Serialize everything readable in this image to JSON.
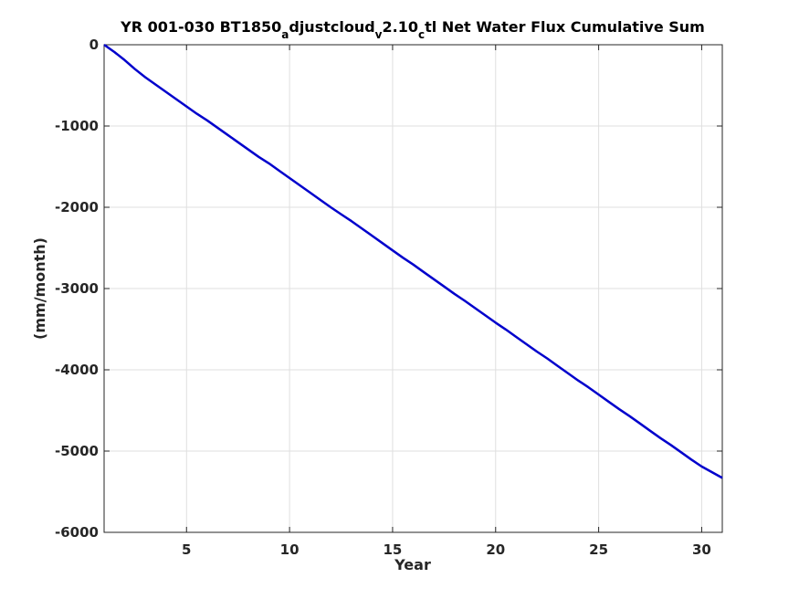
{
  "chart_data": {
    "type": "line",
    "title": {
      "parts": [
        {
          "text": "YR 001-030 BT1850",
          "sub": false
        },
        {
          "text": "a",
          "sub": true
        },
        {
          "text": "djustcloud",
          "sub": false
        },
        {
          "text": "v",
          "sub": true
        },
        {
          "text": "2.10",
          "sub": false
        },
        {
          "text": "c",
          "sub": true
        },
        {
          "text": "tl Net Water Flux Cumulative Sum",
          "sub": false
        }
      ]
    },
    "xlabel": "Year",
    "ylabel": "(mm/month)",
    "xlim": [
      1,
      31
    ],
    "ylim": [
      -6000,
      0
    ],
    "xticks": [
      5,
      10,
      15,
      20,
      25,
      30
    ],
    "yticks": [
      0,
      -1000,
      -2000,
      -3000,
      -4000,
      -5000,
      -6000
    ],
    "grid": true,
    "series": [
      {
        "color": "#0000cc",
        "x": [
          1,
          1.5,
          2,
          2.5,
          3,
          3.5,
          4,
          4.5,
          5,
          5.5,
          6,
          6.5,
          7,
          7.5,
          8,
          8.5,
          9,
          9.5,
          10,
          10.5,
          11,
          11.5,
          12,
          12.5,
          13,
          13.5,
          14,
          14.5,
          15,
          15.5,
          16,
          16.5,
          17,
          17.5,
          18,
          18.5,
          19,
          19.5,
          20,
          20.5,
          21,
          21.5,
          22,
          22.5,
          23,
          23.5,
          24,
          24.5,
          25,
          25.5,
          26,
          26.5,
          27,
          27.5,
          28,
          28.5,
          29,
          29.5,
          30,
          30.5,
          31
        ],
        "y": [
          0,
          -90,
          -190,
          -300,
          -400,
          -490,
          -580,
          -670,
          -760,
          -850,
          -930,
          -1020,
          -1110,
          -1200,
          -1290,
          -1380,
          -1460,
          -1550,
          -1640,
          -1730,
          -1820,
          -1910,
          -2000,
          -2085,
          -2170,
          -2260,
          -2350,
          -2440,
          -2530,
          -2620,
          -2705,
          -2795,
          -2885,
          -2975,
          -3065,
          -3150,
          -3240,
          -3330,
          -3420,
          -3505,
          -3595,
          -3685,
          -3775,
          -3860,
          -3950,
          -4040,
          -4130,
          -4215,
          -4305,
          -4395,
          -4485,
          -4570,
          -4660,
          -4750,
          -4840,
          -4925,
          -5015,
          -5105,
          -5190,
          -5260,
          -5330
        ]
      }
    ]
  }
}
